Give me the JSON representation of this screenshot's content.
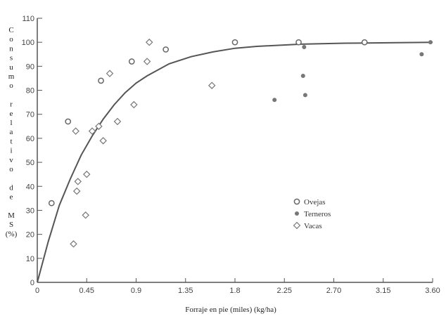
{
  "chart_data": {
    "type": "scatter",
    "title": "",
    "xlabel": "Forraje en pie (miles) (kg/ha)",
    "ylabel": "C o n s u m o   r e l a t i v o   d e   M S (%)",
    "ylabel_lines": [
      "C",
      "o",
      "n",
      "s",
      "u",
      "m",
      "o",
      "",
      "r",
      "e",
      "l",
      "a",
      "t",
      "i",
      "v",
      "o",
      "",
      "d",
      "e",
      "",
      "M",
      "S",
      "(%)"
    ],
    "xlim": [
      0,
      3.6
    ],
    "ylim": [
      0,
      110
    ],
    "x_ticks": [
      0,
      0.45,
      0.9,
      1.35,
      1.8,
      2.25,
      2.7,
      3.15,
      3.6
    ],
    "x_tick_labels": [
      "0",
      "0.45",
      "0.9",
      "1.35",
      "1.8",
      "2.25",
      "2.70",
      "3.15",
      "3.60"
    ],
    "y_ticks": [
      0,
      10,
      20,
      30,
      40,
      50,
      60,
      70,
      80,
      90,
      100,
      110
    ],
    "y_tick_labels": [
      "0",
      "10",
      "20",
      "30",
      "40",
      "50",
      "60",
      "70",
      "80",
      "90",
      "100",
      "110"
    ],
    "grid": false,
    "legend_position": "right",
    "series": [
      {
        "name": "Ovejas",
        "marker": "open-circle",
        "points": [
          {
            "x": 0.13,
            "y": 33
          },
          {
            "x": 0.28,
            "y": 67
          },
          {
            "x": 0.58,
            "y": 84
          },
          {
            "x": 0.86,
            "y": 92
          },
          {
            "x": 1.17,
            "y": 97
          },
          {
            "x": 1.8,
            "y": 100
          },
          {
            "x": 2.38,
            "y": 100
          },
          {
            "x": 2.98,
            "y": 100
          }
        ]
      },
      {
        "name": "Terneros",
        "marker": "filled-circle",
        "points": [
          {
            "x": 2.43,
            "y": 98
          },
          {
            "x": 2.42,
            "y": 86
          },
          {
            "x": 2.44,
            "y": 78
          },
          {
            "x": 2.16,
            "y": 76
          },
          {
            "x": 3.5,
            "y": 95
          },
          {
            "x": 3.58,
            "y": 100
          }
        ]
      },
      {
        "name": "Vacas",
        "marker": "open-diamond",
        "points": [
          {
            "x": 0.33,
            "y": 16
          },
          {
            "x": 0.36,
            "y": 38
          },
          {
            "x": 0.37,
            "y": 42
          },
          {
            "x": 0.44,
            "y": 28
          },
          {
            "x": 0.45,
            "y": 45
          },
          {
            "x": 0.35,
            "y": 63
          },
          {
            "x": 0.5,
            "y": 63
          },
          {
            "x": 0.56,
            "y": 65
          },
          {
            "x": 0.6,
            "y": 59
          },
          {
            "x": 0.66,
            "y": 87
          },
          {
            "x": 0.73,
            "y": 67
          },
          {
            "x": 0.88,
            "y": 74
          },
          {
            "x": 1.0,
            "y": 92
          },
          {
            "x": 1.02,
            "y": 100
          },
          {
            "x": 1.59,
            "y": 82
          }
        ]
      }
    ],
    "fitted_curve": {
      "points": [
        {
          "x": 0,
          "y": 0
        },
        {
          "x": 0.1,
          "y": 17
        },
        {
          "x": 0.2,
          "y": 32
        },
        {
          "x": 0.3,
          "y": 43
        },
        {
          "x": 0.4,
          "y": 53
        },
        {
          "x": 0.5,
          "y": 61
        },
        {
          "x": 0.6,
          "y": 68
        },
        {
          "x": 0.7,
          "y": 74
        },
        {
          "x": 0.8,
          "y": 79
        },
        {
          "x": 0.9,
          "y": 83
        },
        {
          "x": 1.0,
          "y": 86
        },
        {
          "x": 1.2,
          "y": 91
        },
        {
          "x": 1.4,
          "y": 94
        },
        {
          "x": 1.6,
          "y": 96
        },
        {
          "x": 1.8,
          "y": 97.5
        },
        {
          "x": 2.0,
          "y": 98.3
        },
        {
          "x": 2.4,
          "y": 99.2
        },
        {
          "x": 2.8,
          "y": 99.6
        },
        {
          "x": 3.2,
          "y": 99.8
        },
        {
          "x": 3.6,
          "y": 100
        }
      ]
    },
    "colors": {
      "axis": "#555555",
      "curve": "#555555",
      "ovejas": "#666666",
      "terneros": "#777777",
      "vacas": "#777777"
    }
  }
}
